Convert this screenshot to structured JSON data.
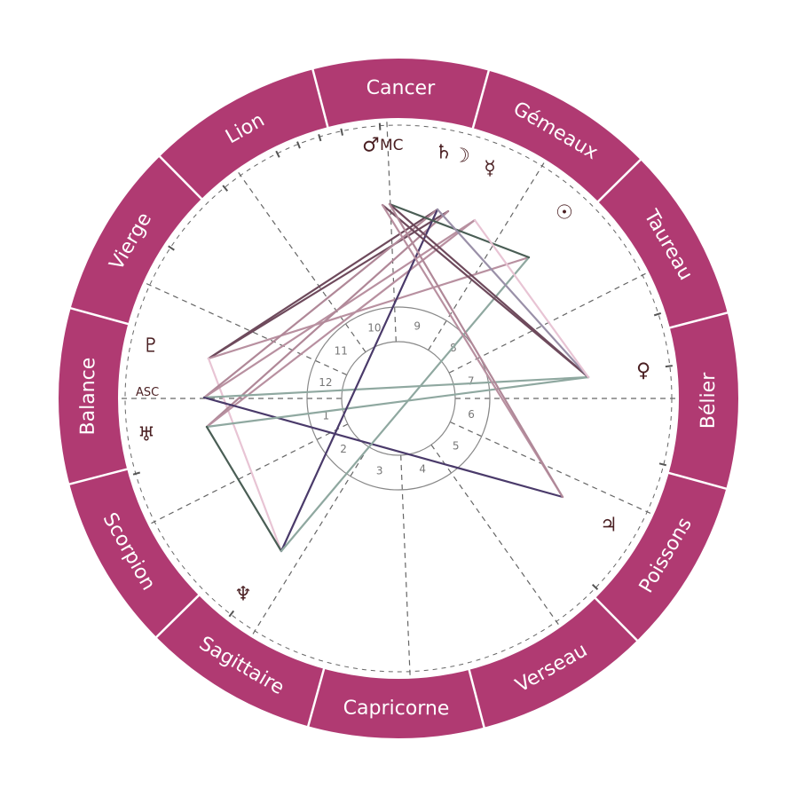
{
  "colors": {
    "ring": "#b03a72",
    "ring_divider": "#ffffff",
    "glyph": "#4a1f22",
    "house_circle": "#888888",
    "cusp_dash": "#666666"
  },
  "signs": [
    "Cancer",
    "Lion",
    "Vierge",
    "Balance",
    "Scorpion",
    "Sagittaire",
    "Capricorne",
    "Verseau",
    "Poissons",
    "Bélier",
    "Taureau",
    "Gémeaux"
  ],
  "houses": [
    "1",
    "2",
    "3",
    "4",
    "5",
    "6",
    "7",
    "8",
    "9",
    "10",
    "11",
    "12"
  ],
  "axes": {
    "asc": "ASC",
    "mc": "MC"
  },
  "planets": [
    {
      "id": "mars",
      "name": "Mars",
      "glyph": "♂",
      "icon": "mars-icon"
    },
    {
      "id": "saturn",
      "name": "Saturne",
      "glyph": "♄",
      "icon": "saturn-icon"
    },
    {
      "id": "moon",
      "name": "Lune",
      "glyph": "☽",
      "icon": "moon-icon"
    },
    {
      "id": "mercury",
      "name": "Mercure",
      "glyph": "☿",
      "icon": "mercury-icon"
    },
    {
      "id": "sun",
      "name": "Soleil",
      "glyph": "☉",
      "icon": "sun-icon"
    },
    {
      "id": "venus",
      "name": "Vénus",
      "glyph": "♀",
      "icon": "venus-icon"
    },
    {
      "id": "jupiter",
      "name": "Jupiter",
      "glyph": "♃",
      "icon": "jupiter-icon"
    },
    {
      "id": "neptune",
      "name": "Neptune",
      "glyph": "♆",
      "icon": "neptune-icon"
    },
    {
      "id": "uranus",
      "name": "Uranus",
      "glyph": "♅",
      "icon": "uranus-icon"
    },
    {
      "id": "pluto",
      "name": "Pluton",
      "glyph": "♇",
      "icon": "pluto-icon"
    }
  ],
  "aspects": [
    {
      "from": "pluto",
      "to": "saturn",
      "color": "#6e4a5c"
    },
    {
      "from": "pluto",
      "to": "moon",
      "color": "#6e4a5c"
    },
    {
      "from": "pluto",
      "to": "sun",
      "color": "#b890a0"
    },
    {
      "from": "pluto",
      "to": "neptune",
      "color": "#e8c4d4"
    },
    {
      "from": "asc",
      "to": "saturn",
      "color": "#b08898"
    },
    {
      "from": "asc",
      "to": "mercury",
      "color": "#b890a0"
    },
    {
      "from": "uranus",
      "to": "moon",
      "color": "#b08898"
    },
    {
      "from": "uranus",
      "to": "mercury",
      "color": "#b890a0"
    },
    {
      "from": "asc",
      "to": "venus",
      "color": "#8fa8a0"
    },
    {
      "from": "asc",
      "to": "jupiter",
      "color": "#4a3a6a"
    },
    {
      "from": "uranus",
      "to": "venus",
      "color": "#8fa8a0"
    },
    {
      "from": "uranus",
      "to": "neptune",
      "color": "#4a5e55"
    },
    {
      "from": "neptune",
      "to": "saturn",
      "color": "#4a3a6a"
    },
    {
      "from": "neptune",
      "to": "sun",
      "color": "#8fa8a0"
    },
    {
      "from": "mc",
      "to": "sun",
      "color": "#4a5e55"
    },
    {
      "from": "mars",
      "to": "venus",
      "color": "#6e4a5c"
    },
    {
      "from": "mc",
      "to": "venus",
      "color": "#6e4a5c"
    },
    {
      "from": "mars",
      "to": "jupiter",
      "color": "#b890a0"
    },
    {
      "from": "mc",
      "to": "jupiter",
      "color": "#b08898"
    },
    {
      "from": "saturn",
      "to": "venus",
      "color": "#9a90a8"
    },
    {
      "from": "mercury",
      "to": "venus",
      "color": "#e8c4d4"
    }
  ]
}
